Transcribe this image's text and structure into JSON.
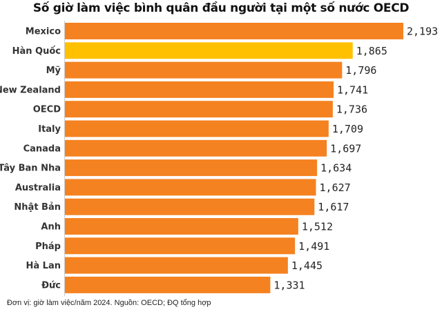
{
  "chart_data": {
    "type": "bar",
    "orientation": "horizontal",
    "title": "Số giờ làm việc bình quân đầu người tại một số nước OECD",
    "categories": [
      "Mexico",
      "Hàn Quốc",
      "Mỹ",
      "New Zealand",
      "OECD",
      "Italy",
      "Canada",
      "Tây Ban Nha",
      "Australia",
      "Nhật Bản",
      "Anh",
      "Pháp",
      "Hà Lan",
      "Đức"
    ],
    "values": [
      2193,
      1865,
      1796,
      1741,
      1736,
      1709,
      1697,
      1634,
      1627,
      1617,
      1512,
      1491,
      1445,
      1331
    ],
    "data_labels": [
      "2,193",
      "1,865",
      "1,796",
      "1,741",
      "1,736",
      "1,709",
      "1,697",
      "1,634",
      "1,627",
      "1,617",
      "1,512",
      "1,491",
      "1,445",
      "1,331"
    ],
    "highlight_category": "Hàn Quốc",
    "colors": {
      "default": "#F58220",
      "highlight": "#FFC000"
    },
    "xlim": [
      0,
      2193
    ],
    "grid": false,
    "footnote": "Đơn vị: giờ làm việc/năm 2024. Nguồn: OECD; ĐQ tổng hợp"
  }
}
